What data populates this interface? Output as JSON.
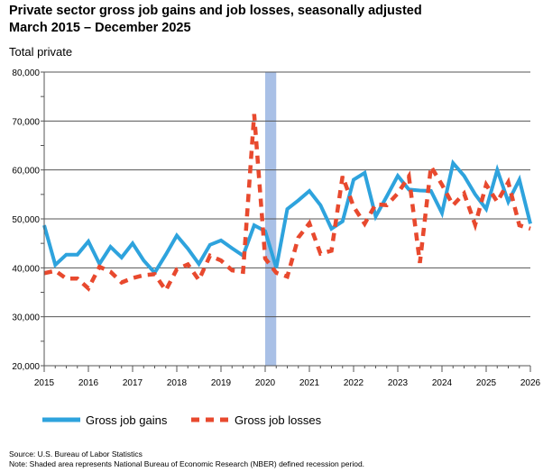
{
  "chart_data": {
    "type": "line",
    "title": "Private sector gross job gains and job losses, seasonally adjusted",
    "subtitle": "March 2015 – December 2025",
    "panel_label": "Total private",
    "ylim": [
      20000,
      80000
    ],
    "y_ticks": [
      20000,
      30000,
      40000,
      50000,
      60000,
      70000,
      80000
    ],
    "y_tick_labels": [
      "20,000",
      "30,000",
      "40,000",
      "50,000",
      "60,000",
      "70,000",
      "80,000"
    ],
    "xlim": [
      2015,
      2026
    ],
    "x_ticks": [
      2015,
      2016,
      2017,
      2018,
      2019,
      2020,
      2021,
      2022,
      2023,
      2024,
      2025,
      2026
    ],
    "x_tick_labels": [
      "2015",
      "2016",
      "2017",
      "2018",
      "2019",
      "2020",
      "2021",
      "2022",
      "2023",
      "2024",
      "2025",
      "2026"
    ],
    "grid": "horizontal",
    "legend": "bottom",
    "recession_shading": {
      "start": 2020.0,
      "end": 2020.25,
      "color": "#a9c0e6"
    },
    "series": [
      {
        "name": "Gross job gains",
        "color": "#2ea3dd",
        "dash": "solid",
        "x": [
          2015.0,
          2015.25,
          2015.5,
          2015.75,
          2016.0,
          2016.25,
          2016.5,
          2016.75,
          2017.0,
          2017.25,
          2017.5,
          2017.75,
          2018.0,
          2018.25,
          2018.5,
          2018.75,
          2019.0,
          2019.25,
          2019.5,
          2019.75,
          2020.0,
          2020.25,
          2020.5,
          2020.75,
          2021.0,
          2021.25,
          2021.5,
          2021.75,
          2022.0,
          2022.25,
          2022.5,
          2022.75,
          2023.0,
          2023.25,
          2023.5,
          2023.75,
          2024.0,
          2024.25,
          2024.5,
          2024.75,
          2025.0,
          2025.25,
          2025.5,
          2025.75,
          2026.0
        ],
        "values": [
          48700,
          40600,
          42700,
          42700,
          45400,
          40800,
          44300,
          42100,
          45000,
          41500,
          39000,
          42700,
          46600,
          43900,
          40800,
          44700,
          45600,
          44000,
          42500,
          48700,
          47500,
          40000,
          52000,
          53800,
          55700,
          52800,
          48000,
          49500,
          58000,
          59400,
          50500,
          54600,
          58800,
          56000,
          55800,
          55700,
          51200,
          61400,
          58800,
          55000,
          52000,
          60000,
          53500,
          58000,
          49000
        ]
      },
      {
        "name": "Gross job losses",
        "color": "#e8492e",
        "dash": "dashed",
        "x": [
          2015.0,
          2015.25,
          2015.5,
          2015.75,
          2016.0,
          2016.25,
          2016.5,
          2016.75,
          2017.0,
          2017.25,
          2017.5,
          2017.75,
          2018.0,
          2018.25,
          2018.5,
          2018.75,
          2019.0,
          2019.25,
          2019.5,
          2019.75,
          2020.0,
          2020.25,
          2020.5,
          2020.75,
          2021.0,
          2021.25,
          2021.5,
          2021.75,
          2022.0,
          2022.25,
          2022.5,
          2022.75,
          2023.0,
          2023.25,
          2023.5,
          2023.75,
          2024.0,
          2024.25,
          2024.5,
          2024.75,
          2025.0,
          2025.25,
          2025.5,
          2025.75,
          2026.0
        ],
        "values": [
          38900,
          39400,
          37800,
          37800,
          35800,
          40200,
          39200,
          37000,
          37900,
          38500,
          38700,
          35400,
          39700,
          40700,
          37500,
          42500,
          41500,
          39500,
          39200,
          71400,
          41900,
          39000,
          38200,
          46200,
          49100,
          42900,
          43500,
          58700,
          52500,
          49000,
          53000,
          52800,
          55200,
          58700,
          41000,
          60700,
          57000,
          52800,
          55200,
          48800,
          57000,
          53500,
          57500,
          48700,
          48000
        ]
      }
    ]
  },
  "notes": {
    "source": "Source: U.S. Bureau of Labor Statistics",
    "note": "Note: Shaded area represents National Bureau of Economic Research (NBER) defined recession period."
  }
}
